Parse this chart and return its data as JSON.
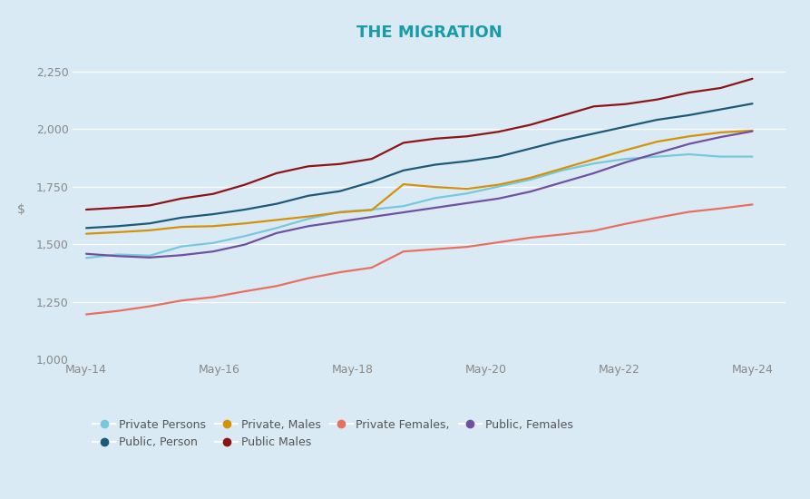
{
  "title_text": "THE MIGRATION",
  "title_color": "#1a9ba8",
  "background_color": "#daeaf5",
  "ylabel": "$",
  "ylim": [
    1000,
    2300
  ],
  "yticks": [
    1000,
    1250,
    1500,
    1750,
    2000,
    2250
  ],
  "x_labels": [
    "May-14",
    "May-16",
    "May-18",
    "May-20",
    "May-22",
    "May-24"
  ],
  "series": [
    {
      "key": "Private Persons",
      "legend": "Private Persons",
      "color": "#78c8dc",
      "values": [
        1440,
        1455,
        1450,
        1490,
        1505,
        1535,
        1570,
        1610,
        1640,
        1650,
        1665,
        1700,
        1720,
        1750,
        1780,
        1820,
        1850,
        1870,
        1880,
        1890,
        1880,
        1880
      ]
    },
    {
      "key": "Public Person",
      "legend": "Public, Person",
      "color": "#1c5a78",
      "values": [
        1570,
        1578,
        1590,
        1615,
        1630,
        1650,
        1675,
        1710,
        1730,
        1770,
        1820,
        1845,
        1860,
        1880,
        1915,
        1950,
        1980,
        2010,
        2040,
        2060,
        2085,
        2110
      ]
    },
    {
      "key": "Private Males",
      "legend": "Private, Males",
      "color": "#d4920a",
      "values": [
        1545,
        1552,
        1560,
        1575,
        1578,
        1590,
        1605,
        1620,
        1638,
        1648,
        1760,
        1748,
        1740,
        1758,
        1788,
        1828,
        1868,
        1908,
        1945,
        1968,
        1985,
        1993
      ]
    },
    {
      "key": "Public Males",
      "legend": "Public Males",
      "color": "#8b1515",
      "values": [
        1650,
        1658,
        1668,
        1698,
        1718,
        1758,
        1808,
        1838,
        1848,
        1870,
        1940,
        1958,
        1968,
        1988,
        2018,
        2058,
        2098,
        2108,
        2128,
        2158,
        2178,
        2218
      ]
    },
    {
      "key": "Private Females",
      "legend": "Private Females,",
      "color": "#e87060",
      "values": [
        1195,
        1210,
        1230,
        1255,
        1270,
        1295,
        1318,
        1352,
        1378,
        1398,
        1468,
        1478,
        1488,
        1508,
        1528,
        1542,
        1558,
        1588,
        1615,
        1640,
        1655,
        1672
      ]
    },
    {
      "key": "Public Females",
      "legend": "Public, Females",
      "color": "#7050a0",
      "values": [
        1458,
        1448,
        1442,
        1452,
        1468,
        1498,
        1548,
        1578,
        1598,
        1618,
        1638,
        1658,
        1678,
        1698,
        1728,
        1768,
        1808,
        1855,
        1895,
        1935,
        1965,
        1990
      ]
    }
  ],
  "legend_order": [
    [
      "Private Persons",
      "#78c8dc"
    ],
    [
      "Public, Person",
      "#1c5a78"
    ],
    [
      "Private, Males",
      "#d4920a"
    ],
    [
      "Public Males",
      "#8b1515"
    ],
    [
      "Private Females,",
      "#e87060"
    ],
    [
      "Public, Females",
      "#7050a0"
    ]
  ]
}
